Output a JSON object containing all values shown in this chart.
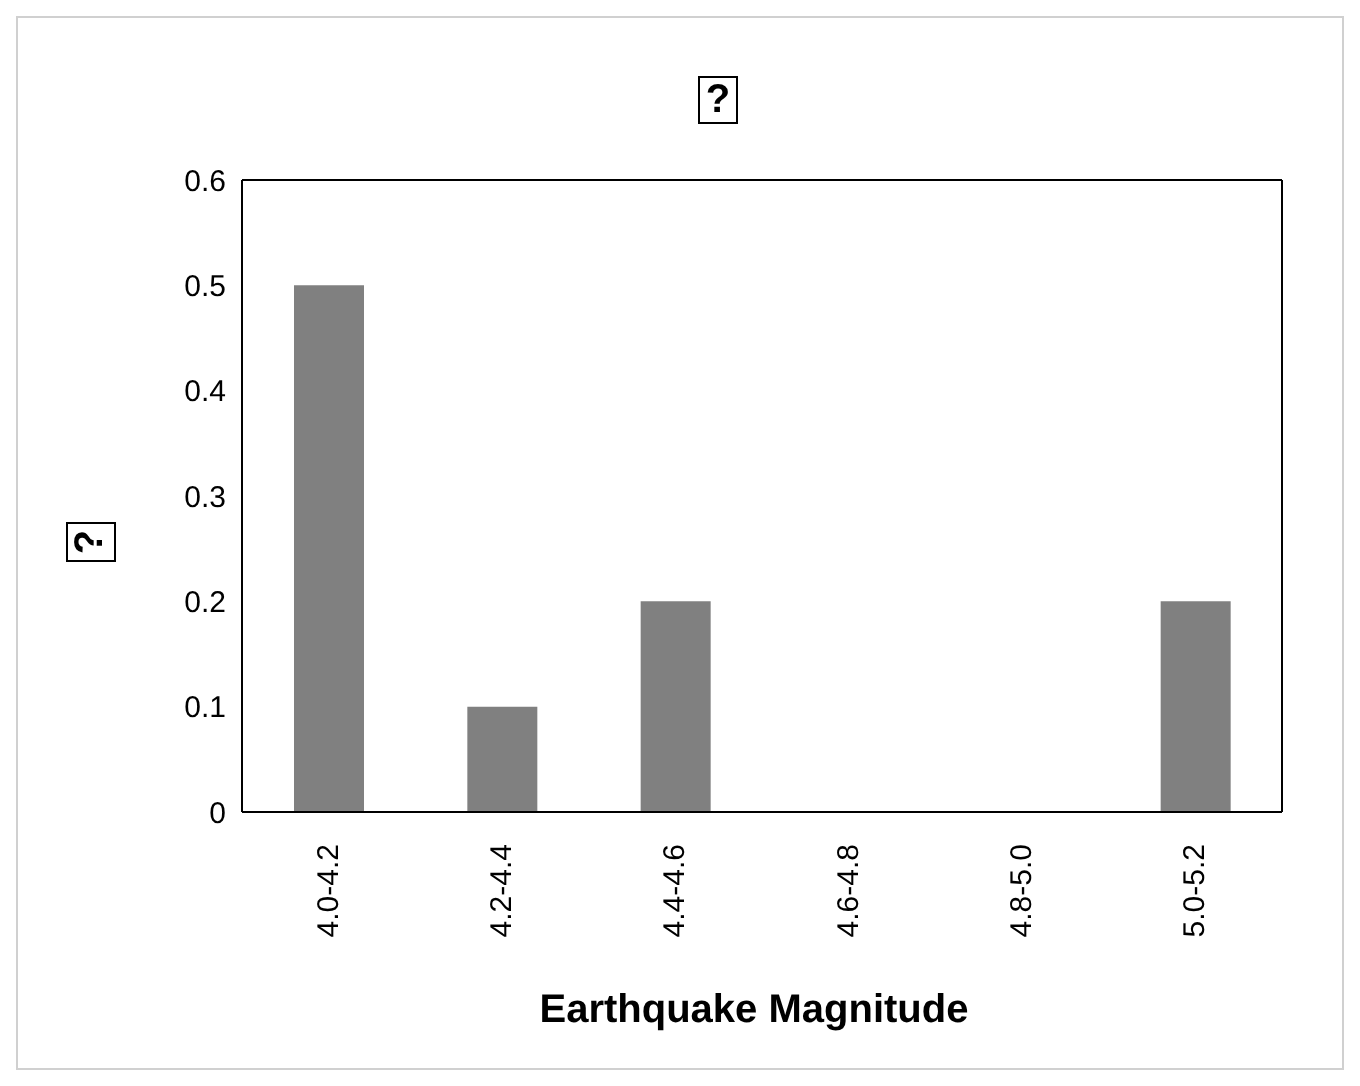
{
  "chart_data": {
    "type": "bar",
    "title": "?",
    "ylabel": "?",
    "xlabel": "Earthquake Magnitude",
    "categories": [
      "4.0-4.2",
      "4.2-4.4",
      "4.4-4.6",
      "4.6-4.8",
      "4.8-5.0",
      "5.0-5.2"
    ],
    "values": [
      0.5,
      0.1,
      0.2,
      0,
      0,
      0.2
    ],
    "color": "#808080",
    "ylim": [
      0,
      0.6
    ],
    "yticks": [
      0,
      0.1,
      0.2,
      0.3,
      0.4,
      0.5,
      0.6
    ],
    "grid": false,
    "legend": false
  }
}
